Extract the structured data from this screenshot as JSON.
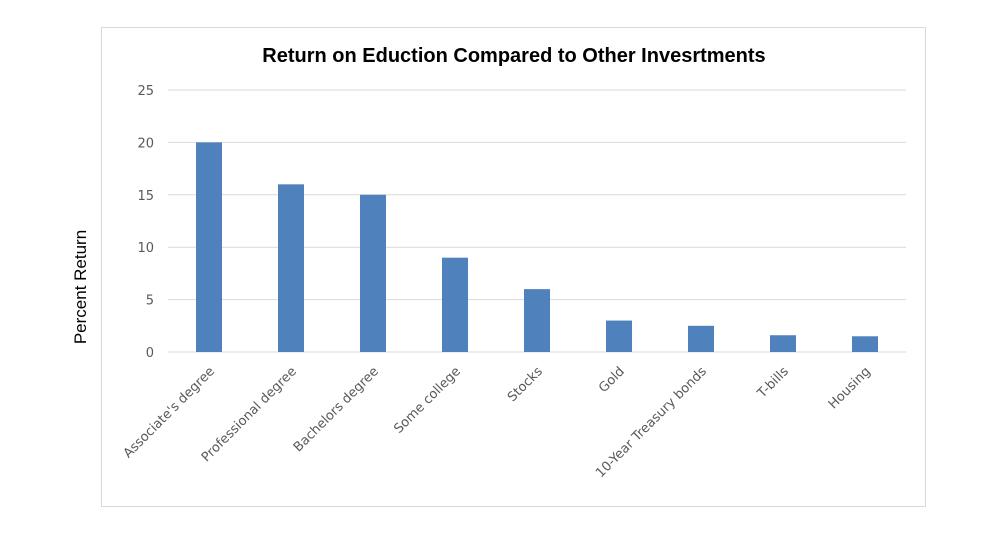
{
  "chart_data": {
    "type": "bar",
    "title": "Return on Eduction Compared to Other Invesrtments",
    "ylabel": "Percent Return",
    "xlabel": "",
    "categories": [
      "Associate's degree",
      "Professional degree",
      "Bachelors degree",
      "Some college",
      "Stocks",
      "Gold",
      "10-Year Treasury bonds",
      "T-bills",
      "Housing"
    ],
    "values": [
      20,
      16,
      15,
      9,
      6,
      3,
      2.5,
      1.6,
      1.5
    ],
    "ylim": [
      0,
      25
    ],
    "yticks": [
      "0",
      "5",
      "10",
      "15",
      "20",
      "25"
    ],
    "grid": true,
    "legend": "none",
    "bar_color": "#4f81bd",
    "grid_color": "#d9d9d9"
  }
}
